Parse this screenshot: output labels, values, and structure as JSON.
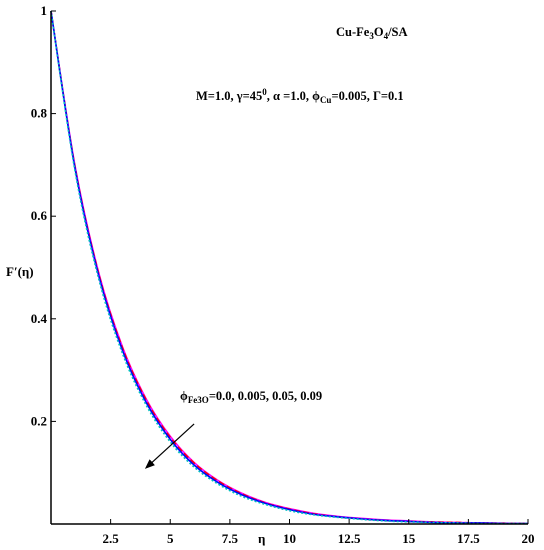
{
  "chart_data": {
    "type": "line",
    "xlabel": "η",
    "ylabel": "F′(η)",
    "xlim": [
      0,
      20
    ],
    "ylim": [
      0,
      1
    ],
    "x_ticks": [
      {
        "value": 2.5,
        "label": "2.5"
      },
      {
        "value": 5,
        "label": "5"
      },
      {
        "value": 7.5,
        "label": "7.5"
      },
      {
        "value": 10,
        "label": "10"
      },
      {
        "value": 12.5,
        "label": "12.5"
      },
      {
        "value": 15,
        "label": "15"
      },
      {
        "value": 17.5,
        "label": "17.5"
      },
      {
        "value": 20,
        "label": "20"
      }
    ],
    "y_ticks": [
      {
        "value": 0.2,
        "label": "0.2"
      },
      {
        "value": 0.4,
        "label": "0.4"
      },
      {
        "value": 0.6,
        "label": "0.6"
      },
      {
        "value": 0.8,
        "label": "0.8"
      },
      {
        "value": 1,
        "label": "1"
      }
    ],
    "grid": false,
    "series": [
      {
        "color": "#ff00ff",
        "dash": "solid",
        "x": [
          0,
          1,
          2,
          3,
          4,
          5,
          6,
          7,
          8,
          9,
          10,
          11,
          12,
          13,
          14,
          15,
          16,
          17,
          18,
          19,
          20
        ],
        "y": [
          1.0,
          0.7,
          0.49,
          0.345,
          0.243,
          0.171,
          0.12,
          0.085,
          0.06,
          0.042,
          0.03,
          0.021,
          0.015,
          0.011,
          0.008,
          0.006,
          0.004,
          0.003,
          0.002,
          0.0015,
          0.001
        ]
      },
      {
        "color": "#ff0000",
        "dash": "dashed",
        "x": [
          0,
          1,
          2,
          3,
          4,
          5,
          6,
          7,
          8,
          9,
          10,
          11,
          12,
          13,
          14,
          15,
          16,
          17,
          18,
          19,
          20
        ],
        "y": [
          1.0,
          0.698,
          0.488,
          0.343,
          0.241,
          0.169,
          0.119,
          0.084,
          0.059,
          0.041,
          0.029,
          0.02,
          0.014,
          0.01,
          0.007,
          0.005,
          0.004,
          0.003,
          0.002,
          0.0015,
          0.001
        ]
      },
      {
        "color": "#0000ff",
        "dash": "solid",
        "x": [
          0,
          1,
          2,
          3,
          4,
          5,
          6,
          7,
          8,
          9,
          10,
          11,
          12,
          13,
          14,
          15,
          16,
          17,
          18,
          19,
          20
        ],
        "y": [
          1.0,
          0.695,
          0.484,
          0.338,
          0.236,
          0.165,
          0.115,
          0.081,
          0.057,
          0.04,
          0.028,
          0.019,
          0.014,
          0.01,
          0.007,
          0.005,
          0.003,
          0.002,
          0.002,
          0.001,
          0.001
        ]
      },
      {
        "color": "#00bfbf",
        "dash": "dotted",
        "x": [
          0,
          1,
          2,
          3,
          4,
          5,
          6,
          7,
          8,
          9,
          10,
          11,
          12,
          13,
          14,
          15,
          16,
          17,
          18,
          19,
          20
        ],
        "y": [
          1.0,
          0.69,
          0.478,
          0.332,
          0.231,
          0.16,
          0.111,
          0.078,
          0.054,
          0.038,
          0.026,
          0.018,
          0.013,
          0.009,
          0.006,
          0.004,
          0.003,
          0.002,
          0.001,
          0.001,
          0.001
        ]
      }
    ],
    "annotations": {
      "title": "Cu-Fe3O4/SA",
      "params": "M=1.0, γ=45⁰, α =1.0, ϕCu=0.005, Γ=0.1",
      "phi_label": "ϕFe3O=0.0, 0.005, 0.05, 0.09",
      "arrow": {
        "from": [
          6.0,
          0.195
        ],
        "to": [
          4.0,
          0.11
        ]
      }
    }
  }
}
